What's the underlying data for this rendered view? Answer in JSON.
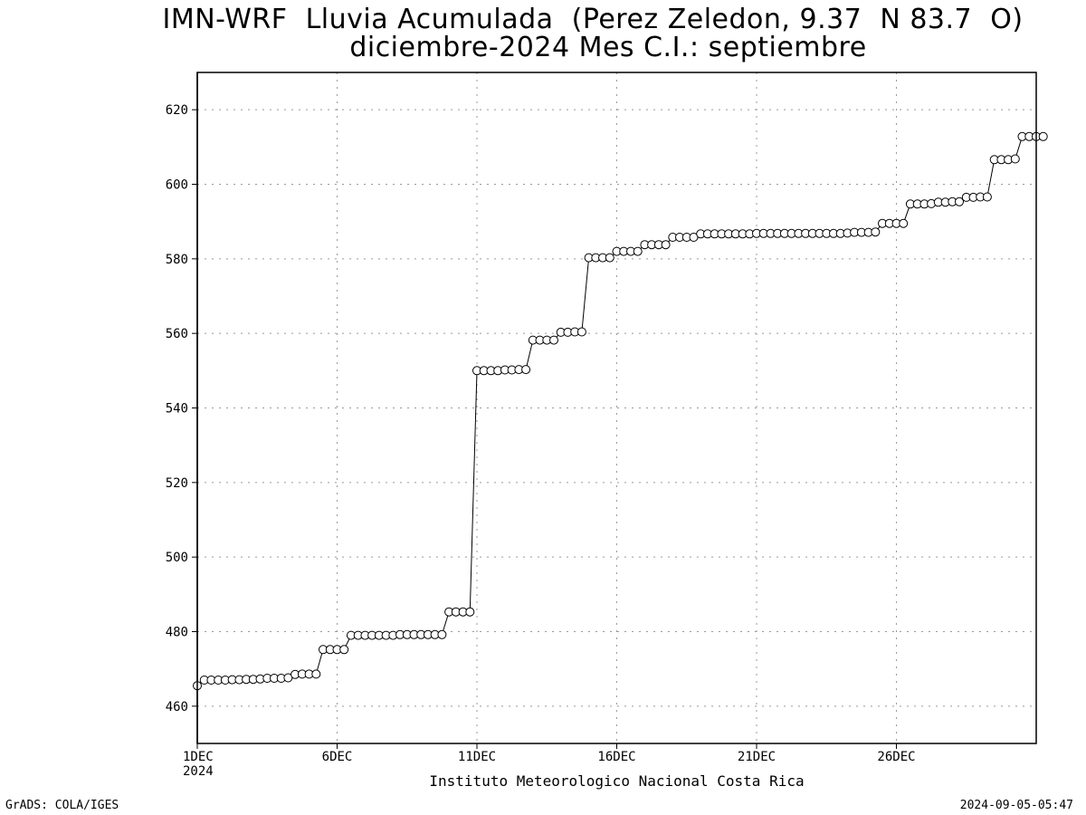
{
  "chart_data": {
    "type": "line",
    "title": "IMN-WRF  Lluvia Acumulada  (Perez Zeledon, 9.37  N 83.7  O)",
    "subtitle": "diciembre-2024 Mes C.I.: septiembre",
    "xlabel": "Instituto Meteorologico Nacional Costa Rica",
    "ylabel": "",
    "ylim": [
      450,
      630
    ],
    "xlim_days": [
      1,
      31
    ],
    "yticks": [
      460,
      480,
      500,
      520,
      540,
      560,
      580,
      600,
      620
    ],
    "xticks": [
      {
        "day": 1,
        "label": "1DEC",
        "sublabel": "2024"
      },
      {
        "day": 6,
        "label": "6DEC",
        "sublabel": ""
      },
      {
        "day": 11,
        "label": "11DEC",
        "sublabel": ""
      },
      {
        "day": 16,
        "label": "16DEC",
        "sublabel": ""
      },
      {
        "day": 21,
        "label": "21DEC",
        "sublabel": ""
      },
      {
        "day": 26,
        "label": "26DEC",
        "sublabel": ""
      }
    ],
    "grid": true,
    "marker": "open-circle",
    "series": [
      {
        "x_start_day": 1,
        "x_step_hours": 6,
        "values": [
          465.5,
          467,
          467,
          467,
          467,
          467.1,
          467.1,
          467.2,
          467.2,
          467.3,
          467.5,
          467.5,
          467.5,
          467.6,
          468.5,
          468.6,
          468.6,
          468.6,
          475.2,
          475.2,
          475.2,
          475.2,
          479,
          479,
          479,
          479,
          479,
          479,
          479,
          479.2,
          479.2,
          479.2,
          479.2,
          479.2,
          479.2,
          479.2,
          485.3,
          485.3,
          485.3,
          485.3,
          550,
          550,
          550,
          550,
          550.2,
          550.2,
          550.3,
          550.3,
          558.2,
          558.2,
          558.2,
          558.2,
          560.3,
          560.3,
          560.4,
          560.4,
          580.3,
          580.3,
          580.3,
          580.3,
          582,
          582,
          582,
          582,
          583.8,
          583.8,
          583.8,
          583.8,
          585.8,
          585.8,
          585.8,
          585.8,
          586.7,
          586.7,
          586.7,
          586.7,
          586.7,
          586.7,
          586.7,
          586.7,
          586.8,
          586.8,
          586.8,
          586.8,
          586.8,
          586.8,
          586.8,
          586.8,
          586.8,
          586.8,
          586.8,
          586.8,
          586.8,
          586.9,
          587.1,
          587.1,
          587.1,
          587.2,
          589.5,
          589.5,
          589.5,
          589.5,
          594.7,
          594.7,
          594.7,
          594.8,
          595.2,
          595.2,
          595.3,
          595.3,
          596.5,
          596.5,
          596.6,
          596.6,
          606.6,
          606.6,
          606.6,
          606.8,
          612.8,
          612.8,
          612.8,
          612.8
        ]
      }
    ]
  },
  "footer": {
    "credit_left": "GrADS: COLA/IGES",
    "credit_right": "2024-09-05-05:47"
  }
}
